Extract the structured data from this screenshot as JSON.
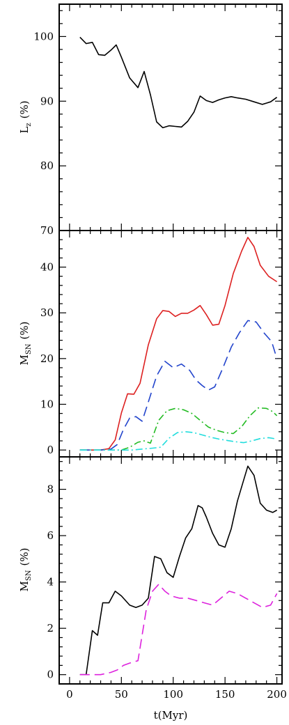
{
  "chart_data": [
    {
      "type": "line",
      "panel": "top",
      "ylabel": "L_z (%)",
      "ylabel_main": "L",
      "ylabel_sub": "z",
      "ylabel_unit": "(%)",
      "xlim": [
        -10,
        205
      ],
      "ylim": [
        70,
        105
      ],
      "yticks": [
        70,
        80,
        90,
        100
      ],
      "series": [
        {
          "color": "#000000",
          "dash": "solid",
          "x": [
            10,
            16,
            22,
            28,
            34,
            40,
            45,
            50,
            58,
            66,
            72,
            78,
            84,
            90,
            96,
            102,
            108,
            114,
            120,
            126,
            132,
            138,
            144,
            150,
            156,
            162,
            170,
            178,
            186,
            194,
            200
          ],
          "y": [
            99.9,
            98.9,
            99.1,
            97.2,
            97.1,
            97.9,
            98.7,
            96.8,
            93.6,
            92.1,
            94.6,
            91.0,
            86.8,
            85.9,
            86.2,
            86.1,
            86.0,
            86.9,
            88.3,
            90.8,
            90.1,
            89.8,
            90.2,
            90.5,
            90.7,
            90.5,
            90.3,
            89.9,
            89.5,
            89.9,
            90.6
          ]
        }
      ]
    },
    {
      "type": "line",
      "panel": "middle",
      "ylabel": "M_SN (%)",
      "ylabel_main": "M",
      "ylabel_sub": "SN",
      "ylabel_unit": "(%)",
      "xlim": [
        -10,
        205
      ],
      "ylim": [
        -1.5,
        48
      ],
      "yticks": [
        0,
        10,
        20,
        30,
        40
      ],
      "series": [
        {
          "color": "#dd2020",
          "dash": "solid",
          "x": [
            10,
            20,
            30,
            38,
            44,
            50,
            56,
            62,
            68,
            76,
            84,
            90,
            96,
            102,
            108,
            114,
            120,
            126,
            132,
            138,
            144,
            150,
            158,
            166,
            172,
            178,
            184,
            192,
            200
          ],
          "y": [
            0,
            0,
            0,
            0.3,
            2.2,
            8.1,
            12.3,
            12.2,
            14.6,
            23.0,
            28.7,
            30.5,
            30.3,
            29.2,
            29.9,
            29.9,
            30.6,
            31.6,
            29.6,
            27.3,
            27.5,
            31.6,
            38.6,
            43.5,
            46.5,
            44.5,
            40.4,
            38.0,
            36.8
          ]
        },
        {
          "color": "#2244cc",
          "dash": "long-dash",
          "x": [
            10,
            20,
            30,
            40,
            46,
            52,
            58,
            64,
            70,
            76,
            84,
            92,
            100,
            108,
            116,
            122,
            128,
            134,
            140,
            148,
            156,
            164,
            172,
            180,
            188,
            195,
            200
          ],
          "y": [
            0,
            0,
            0,
            0.2,
            1.2,
            4.5,
            7.0,
            7.3,
            6.3,
            10.5,
            16.2,
            19.4,
            18.0,
            18.8,
            17.4,
            15.3,
            14.1,
            13.1,
            13.8,
            18.0,
            22.5,
            25.7,
            28.3,
            28.0,
            25.5,
            23.7,
            20.0
          ]
        },
        {
          "color": "#22bb22",
          "dash": "dash-dot",
          "x": [
            10,
            20,
            30,
            40,
            50,
            58,
            66,
            72,
            78,
            86,
            94,
            102,
            110,
            118,
            126,
            134,
            142,
            150,
            158,
            166,
            174,
            182,
            190,
            196,
            200
          ],
          "y": [
            0,
            0,
            0,
            0,
            0,
            0.6,
            1.7,
            2.0,
            1.5,
            6.5,
            8.6,
            9.1,
            8.8,
            8.0,
            6.5,
            5.0,
            4.3,
            3.8,
            3.6,
            5.1,
            7.5,
            9.2,
            9.1,
            8.4,
            7.5
          ]
        },
        {
          "color": "#22dddd",
          "dash": "dash-dot",
          "x": [
            10,
            20,
            30,
            40,
            50,
            60,
            70,
            80,
            88,
            96,
            104,
            112,
            120,
            128,
            136,
            144,
            152,
            160,
            168,
            176,
            184,
            192,
            200
          ],
          "y": [
            0,
            0,
            0,
            0,
            0,
            0,
            0.2,
            0.4,
            0.6,
            2.6,
            3.8,
            4.0,
            3.8,
            3.3,
            2.8,
            2.4,
            2.1,
            1.8,
            1.6,
            2.0,
            2.5,
            2.7,
            2.4
          ]
        }
      ]
    },
    {
      "type": "line",
      "panel": "bottom",
      "ylabel": "M_SN (%)",
      "ylabel_main": "M",
      "ylabel_sub": "SN",
      "ylabel_unit": "(%)",
      "xlabel": "t(Myr)",
      "xlim": [
        -10,
        205
      ],
      "ylim": [
        -0.4,
        9.4
      ],
      "yticks": [
        0,
        2,
        4,
        6,
        8
      ],
      "xticks": [
        0,
        50,
        100,
        150,
        200
      ],
      "series": [
        {
          "color": "#000000",
          "dash": "solid",
          "x": [
            10,
            16,
            22,
            27,
            32,
            38,
            44,
            50,
            58,
            64,
            70,
            76,
            82,
            88,
            94,
            100,
            106,
            112,
            118,
            124,
            128,
            132,
            138,
            144,
            150,
            156,
            162,
            168,
            172,
            178,
            184,
            190,
            196,
            200
          ],
          "y": [
            0,
            0,
            1.9,
            1.7,
            3.1,
            3.1,
            3.6,
            3.4,
            3.0,
            2.9,
            3.0,
            3.3,
            5.1,
            5.0,
            4.4,
            4.2,
            5.1,
            5.9,
            6.3,
            7.3,
            7.2,
            6.8,
            6.1,
            5.6,
            5.5,
            6.3,
            7.5,
            8.4,
            9.0,
            8.6,
            7.4,
            7.1,
            7.0,
            7.1
          ]
        },
        {
          "color": "#dd22dd",
          "dash": "long-dash",
          "x": [
            10,
            20,
            30,
            40,
            46,
            52,
            58,
            66,
            74,
            80,
            86,
            92,
            98,
            106,
            114,
            122,
            130,
            138,
            146,
            154,
            162,
            170,
            178,
            186,
            194,
            200
          ],
          "y": [
            0,
            0,
            0,
            0.1,
            0.2,
            0.4,
            0.5,
            0.6,
            2.8,
            3.6,
            3.9,
            3.6,
            3.4,
            3.3,
            3.3,
            3.2,
            3.1,
            3.0,
            3.3,
            3.6,
            3.5,
            3.3,
            3.1,
            2.9,
            3.0,
            3.5
          ]
        }
      ]
    }
  ]
}
